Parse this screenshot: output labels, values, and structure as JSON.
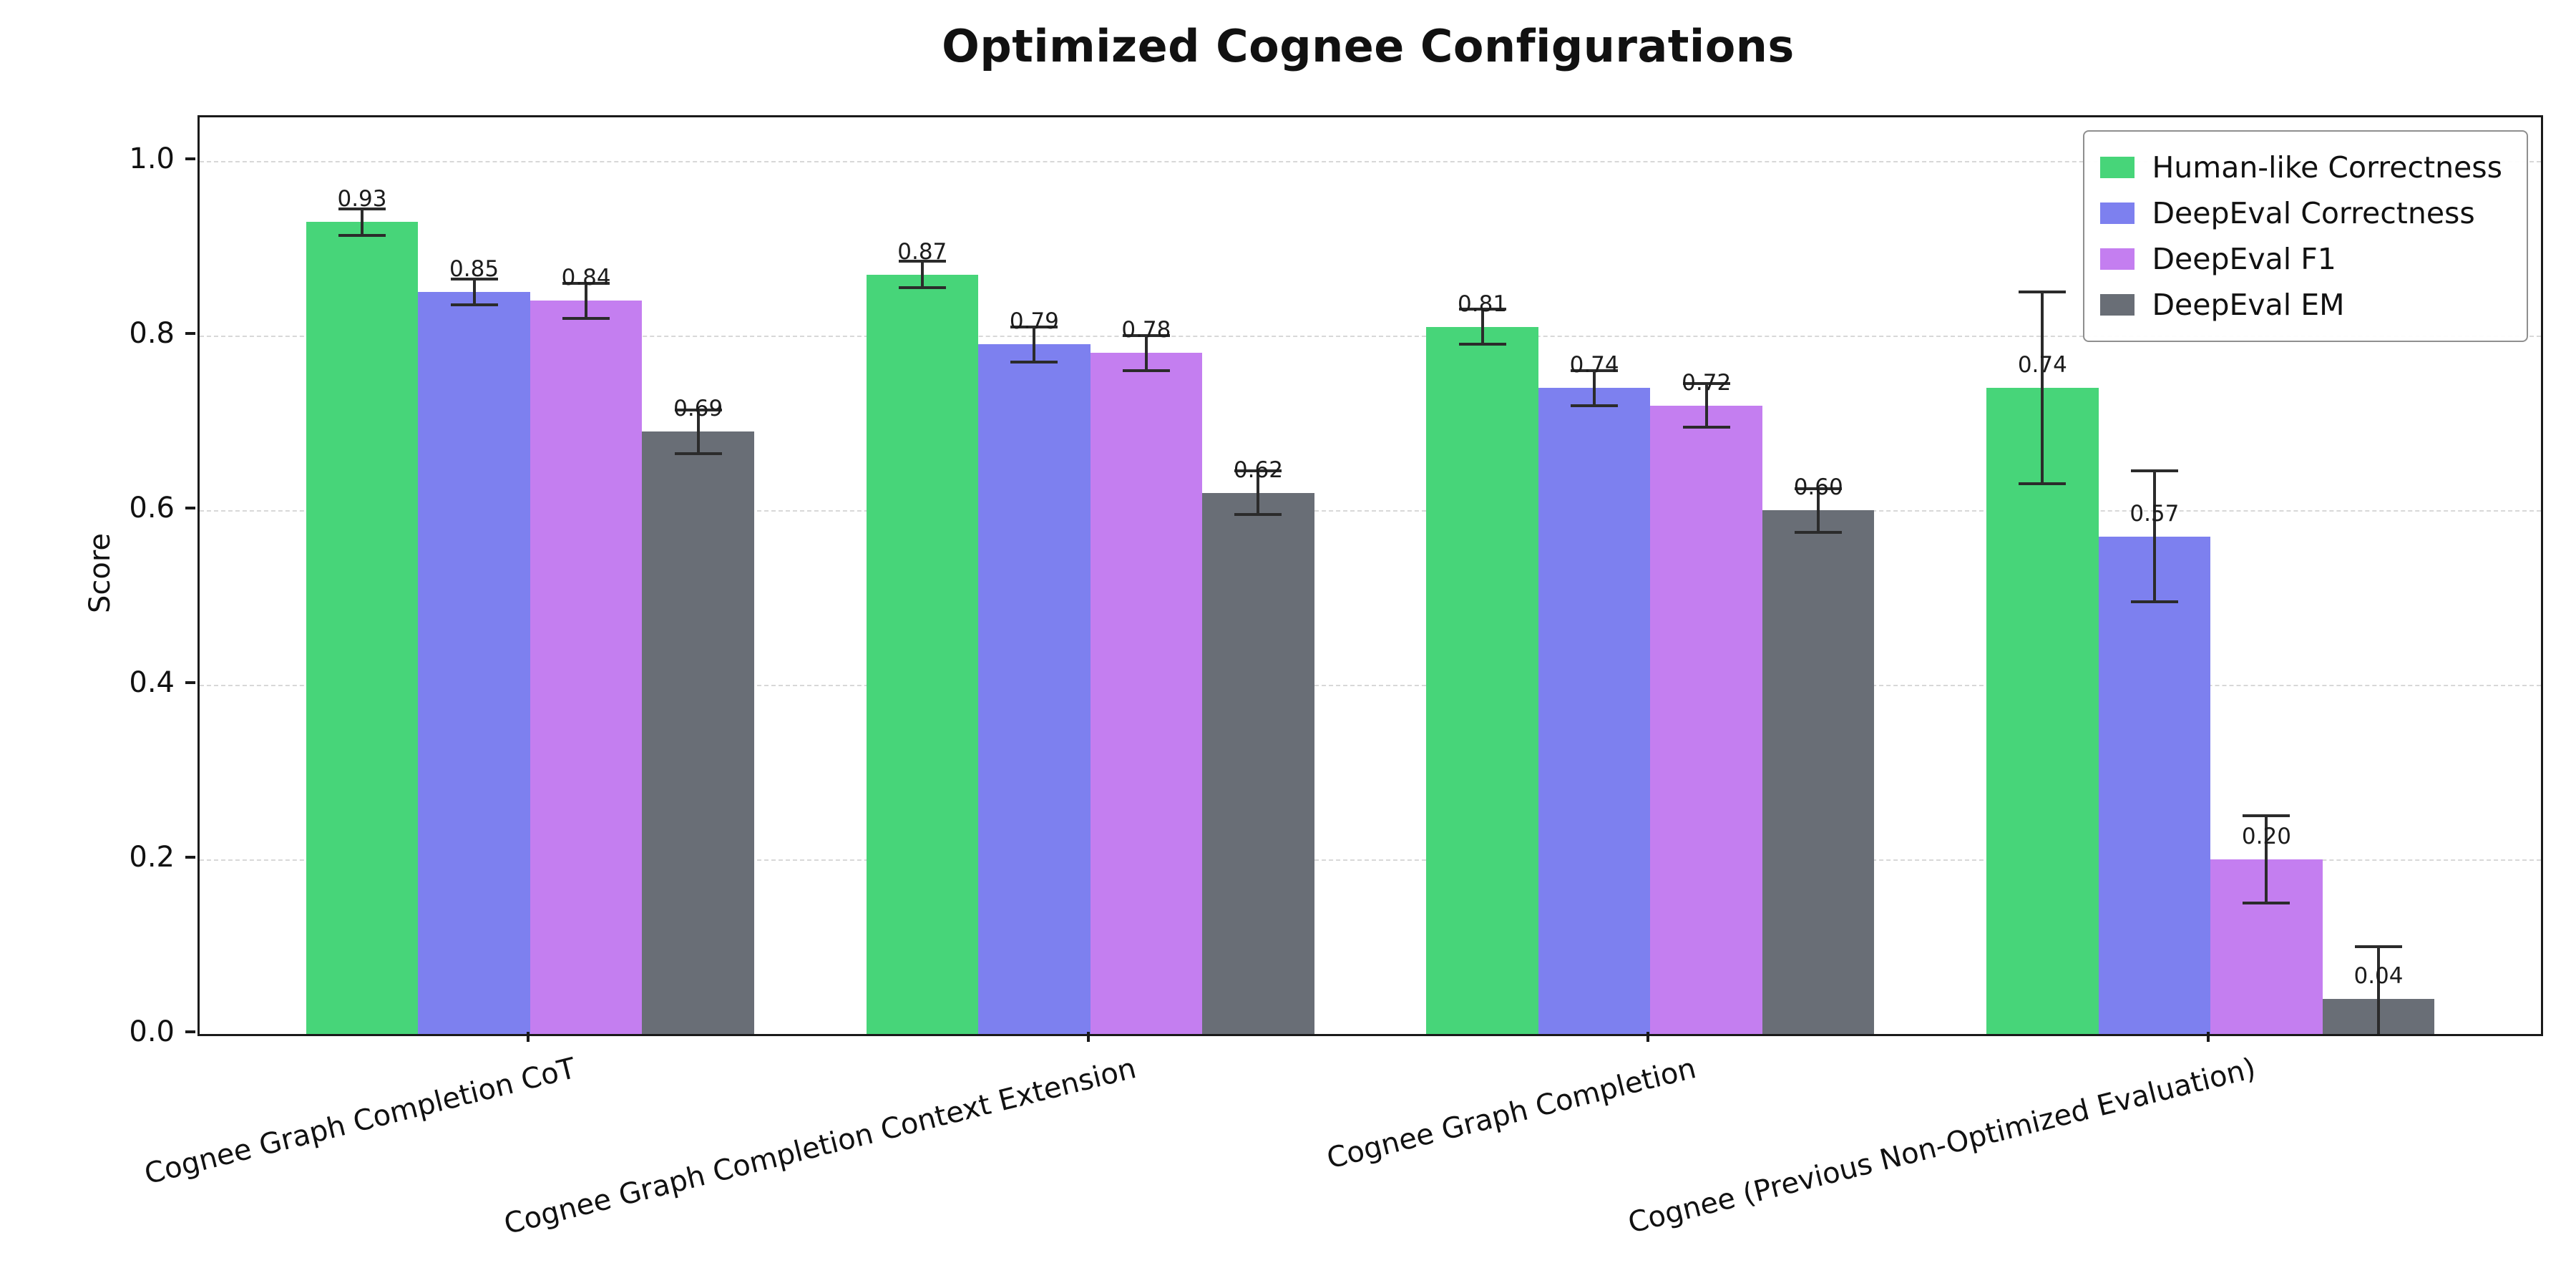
{
  "chart_data": {
    "type": "bar",
    "title": "Optimized Cognee Configurations",
    "ylabel": "Score",
    "xlabel": "",
    "ylim": [
      0,
      1.05
    ],
    "xlim": [
      -0.59,
      3.59
    ],
    "yticks": [
      0,
      0.2,
      0.4,
      0.6,
      0.8,
      1.0
    ],
    "bar_width": 0.2,
    "grid": "horizontal-dashed",
    "legend_position": "upper-right",
    "error_bar_color": "#2b2b2b",
    "categories": [
      "Cognee Graph Completion CoT",
      "Cognee Graph Completion Context Extension",
      "Cognee Graph Completion",
      "Cognee (Previous Non-Optimized Evaluation)"
    ],
    "series": [
      {
        "name": "Human-like Correctness",
        "color": "#47d579",
        "values": [
          0.93,
          0.87,
          0.81,
          0.74
        ],
        "errors": [
          0.015,
          0.015,
          0.02,
          0.11
        ]
      },
      {
        "name": "DeepEval Correctness",
        "color": "#7d80ef",
        "values": [
          0.85,
          0.79,
          0.74,
          0.57
        ],
        "errors": [
          0.015,
          0.02,
          0.02,
          0.075
        ]
      },
      {
        "name": "DeepEval F1",
        "color": "#c47ef0",
        "values": [
          0.84,
          0.78,
          0.72,
          0.2
        ],
        "errors": [
          0.02,
          0.02,
          0.025,
          0.05
        ]
      },
      {
        "name": "DeepEval EM",
        "color": "#696e76",
        "values": [
          0.69,
          0.62,
          0.6,
          0.04
        ],
        "errors": [
          0.025,
          0.025,
          0.025,
          0.06
        ]
      }
    ]
  }
}
